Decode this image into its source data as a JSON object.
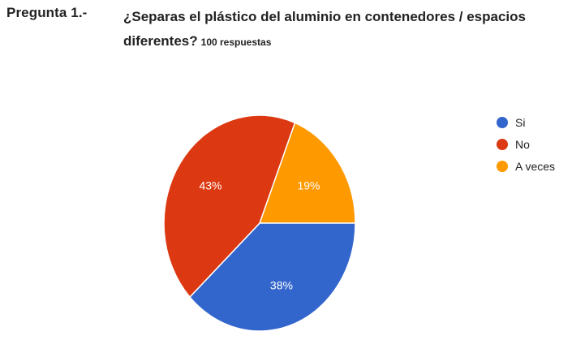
{
  "header": {
    "question_label": "Pregunta 1.-",
    "question_text": "¿Separas el plástico del aluminio en contenedores / espacios diferentes?",
    "response_count": "100 respuestas"
  },
  "chart_data": {
    "type": "pie",
    "title": "",
    "legend_position": "right",
    "slices": [
      {
        "label": "Si",
        "value": 38,
        "display": "38%",
        "color": "#3366cc"
      },
      {
        "label": "No",
        "value": 43,
        "display": "43%",
        "color": "#dc3912"
      },
      {
        "label": "A veces",
        "value": 19,
        "display": "19%",
        "color": "#ff9900"
      }
    ]
  }
}
